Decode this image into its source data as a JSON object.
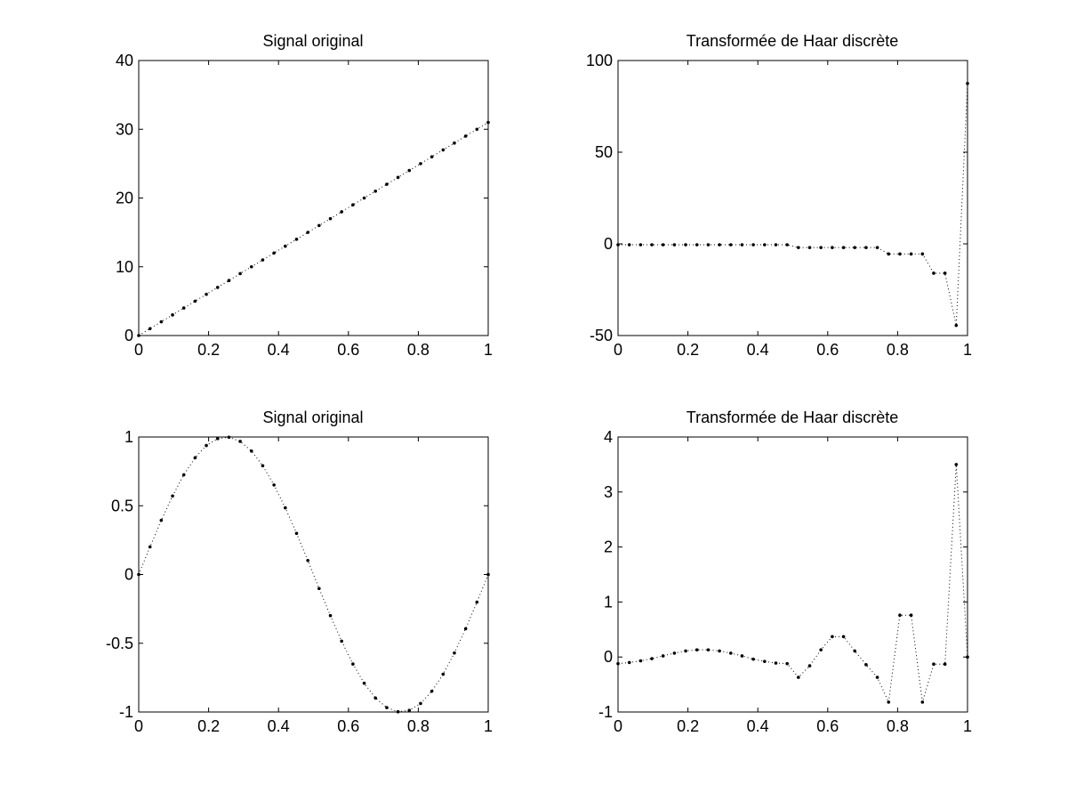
{
  "figure": {
    "background": "#ffffff"
  },
  "chart_data": [
    {
      "id": "top-left",
      "type": "line",
      "title": "Signal original",
      "xlabel": "",
      "ylabel": "",
      "xlim": [
        0,
        1
      ],
      "ylim": [
        0,
        40
      ],
      "xticks": [
        0,
        0.2,
        0.4,
        0.6,
        0.8,
        1
      ],
      "xtick_labels": [
        "0",
        "0.2",
        "0.4",
        "0.6",
        "0.8",
        "1"
      ],
      "yticks": [
        0,
        10,
        20,
        30,
        40
      ],
      "ytick_labels": [
        "0",
        "10",
        "20",
        "30",
        "40"
      ],
      "grid": false,
      "line_style": "dotted",
      "marker": "point",
      "color": "#000000",
      "series": [
        {
          "x": [
            0,
            0.0323,
            0.0645,
            0.0968,
            0.129,
            0.1613,
            0.1935,
            0.2258,
            0.2581,
            0.2903,
            0.3226,
            0.3548,
            0.3871,
            0.4194,
            0.4516,
            0.4839,
            0.5161,
            0.5484,
            0.5806,
            0.6129,
            0.6452,
            0.6774,
            0.7097,
            0.7419,
            0.7742,
            0.8065,
            0.8387,
            0.871,
            0.9032,
            0.9355,
            0.9677,
            1
          ],
          "y": [
            0,
            1,
            2,
            3,
            4,
            5,
            6,
            7,
            8,
            9,
            10,
            11,
            12,
            13,
            14,
            15,
            16,
            17,
            18,
            19,
            20,
            21,
            22,
            23,
            24,
            25,
            26,
            27,
            28,
            29,
            30,
            31
          ]
        }
      ]
    },
    {
      "id": "top-right",
      "type": "line",
      "title": "Transformée de Haar discrète",
      "xlabel": "",
      "ylabel": "",
      "xlim": [
        0,
        1
      ],
      "ylim": [
        -50,
        100
      ],
      "xticks": [
        0,
        0.2,
        0.4,
        0.6,
        0.8,
        1
      ],
      "xtick_labels": [
        "0",
        "0.2",
        "0.4",
        "0.6",
        "0.8",
        "1"
      ],
      "yticks": [
        -50,
        0,
        50,
        100
      ],
      "ytick_labels": [
        "-50",
        "0",
        "50",
        "100"
      ],
      "grid": false,
      "line_style": "dotted",
      "marker": "point",
      "color": "#000000",
      "series": [
        {
          "x": [
            0,
            0.0323,
            0.0645,
            0.0968,
            0.129,
            0.1613,
            0.1935,
            0.2258,
            0.2581,
            0.2903,
            0.3226,
            0.3548,
            0.3871,
            0.4194,
            0.4516,
            0.4839,
            0.5161,
            0.5484,
            0.5806,
            0.6129,
            0.6452,
            0.6774,
            0.7097,
            0.7419,
            0.7742,
            0.8065,
            0.8387,
            0.871,
            0.9032,
            0.9355,
            0.9677,
            1
          ],
          "y": [
            -0.5,
            -0.5,
            -0.5,
            -0.5,
            -0.5,
            -0.5,
            -0.5,
            -0.5,
            -0.5,
            -0.5,
            -0.5,
            -0.5,
            -0.5,
            -0.5,
            -0.5,
            -0.5,
            -2,
            -2,
            -2,
            -2,
            -2,
            -2,
            -2,
            -2,
            -5.5,
            -5.5,
            -5.5,
            -5.5,
            -16,
            -16,
            -44.5,
            87.5
          ]
        }
      ]
    },
    {
      "id": "bottom-left",
      "type": "line",
      "title": "Signal original",
      "xlabel": "",
      "ylabel": "",
      "xlim": [
        0,
        1
      ],
      "ylim": [
        -1,
        1
      ],
      "xticks": [
        0,
        0.2,
        0.4,
        0.6,
        0.8,
        1
      ],
      "xtick_labels": [
        "0",
        "0.2",
        "0.4",
        "0.6",
        "0.8",
        "1"
      ],
      "yticks": [
        -1,
        -0.5,
        0,
        0.5,
        1
      ],
      "ytick_labels": [
        "-1",
        "-0.5",
        "0",
        "0.5",
        "1"
      ],
      "grid": false,
      "line_style": "dotted",
      "marker": "point",
      "color": "#000000",
      "series": [
        {
          "x": [
            0,
            0.0323,
            0.0645,
            0.0968,
            0.129,
            0.1613,
            0.1935,
            0.2258,
            0.2581,
            0.2903,
            0.3226,
            0.3548,
            0.3871,
            0.4194,
            0.4516,
            0.4839,
            0.5161,
            0.5484,
            0.5806,
            0.6129,
            0.6452,
            0.6774,
            0.7097,
            0.7419,
            0.7742,
            0.8065,
            0.8387,
            0.871,
            0.9032,
            0.9355,
            0.9677,
            1
          ],
          "y": [
            0,
            0.201,
            0.394,
            0.571,
            0.725,
            0.849,
            0.938,
            0.988,
            0.998,
            0.968,
            0.898,
            0.791,
            0.651,
            0.485,
            0.299,
            0.102,
            -0.102,
            -0.299,
            -0.485,
            -0.651,
            -0.791,
            -0.898,
            -0.968,
            -0.998,
            -0.988,
            -0.938,
            -0.849,
            -0.725,
            -0.571,
            -0.394,
            -0.201,
            0
          ]
        }
      ]
    },
    {
      "id": "bottom-right",
      "type": "line",
      "title": "Transformée de Haar discrète",
      "xlabel": "",
      "ylabel": "",
      "xlim": [
        0,
        1
      ],
      "ylim": [
        -1,
        4
      ],
      "xticks": [
        0,
        0.2,
        0.4,
        0.6,
        0.8,
        1
      ],
      "xtick_labels": [
        "0",
        "0.2",
        "0.4",
        "0.6",
        "0.8",
        "1"
      ],
      "yticks": [
        -1,
        0,
        1,
        2,
        3,
        4
      ],
      "ytick_labels": [
        "-1",
        "0",
        "1",
        "2",
        "3",
        "4"
      ],
      "grid": false,
      "line_style": "dotted",
      "marker": "point",
      "color": "#000000",
      "series": [
        {
          "x": [
            0,
            0.0323,
            0.0645,
            0.0968,
            0.129,
            0.1613,
            0.1935,
            0.2258,
            0.2581,
            0.2903,
            0.3226,
            0.3548,
            0.3871,
            0.4194,
            0.4516,
            0.4839,
            0.5161,
            0.5484,
            0.5806,
            0.6129,
            0.6452,
            0.6774,
            0.7097,
            0.7419,
            0.7742,
            0.8065,
            0.8387,
            0.871,
            0.9032,
            0.9355,
            0.9677,
            1
          ],
          "y": [
            -0.12,
            -0.1,
            -0.07,
            -0.03,
            0.02,
            0.07,
            0.11,
            0.13,
            0.13,
            0.11,
            0.07,
            0.02,
            -0.04,
            -0.08,
            -0.11,
            -0.12,
            -0.37,
            -0.16,
            0.13,
            0.37,
            0.37,
            0.11,
            -0.14,
            -0.37,
            -0.82,
            0.76,
            0.76,
            -0.82,
            -0.13,
            -0.13,
            3.5,
            0
          ]
        }
      ]
    }
  ]
}
